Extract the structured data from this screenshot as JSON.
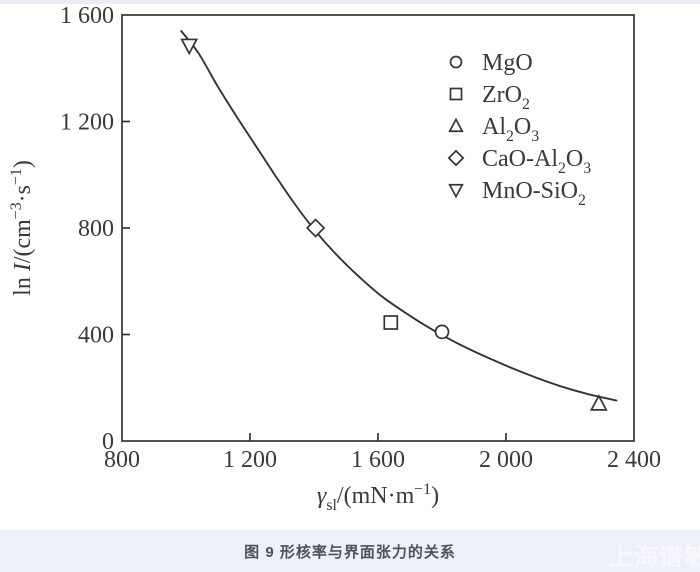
{
  "figure": {
    "caption": "图 9 形核率与界面张力的关系",
    "watermark": "上海谱敏"
  },
  "chart_data": {
    "type": "scatter",
    "title": "",
    "grid": false,
    "legend_position": "top-right",
    "xlim": [
      800,
      2400
    ],
    "ylim": [
      0,
      1600
    ],
    "x_ticks": [
      {
        "v": 800,
        "label": "800"
      },
      {
        "v": 1200,
        "label": "1 200"
      },
      {
        "v": 1600,
        "label": "1 600"
      },
      {
        "v": 2000,
        "label": "2 000"
      },
      {
        "v": 2400,
        "label": "2 400"
      }
    ],
    "y_ticks": [
      {
        "v": 0,
        "label": "0"
      },
      {
        "v": 400,
        "label": "400"
      },
      {
        "v": 800,
        "label": "800"
      },
      {
        "v": 1200,
        "label": "1 200"
      },
      {
        "v": 1600,
        "label": "1 600"
      }
    ],
    "xlabel_parts": [
      {
        "t": "γ",
        "i": true
      },
      {
        "t": "sl",
        "sub": true
      },
      {
        "t": "/(mN·m"
      },
      {
        "t": "−1",
        "sup": true
      },
      {
        "t": ")"
      }
    ],
    "ylabel_parts": [
      {
        "t": "ln "
      },
      {
        "t": "I",
        "i": true
      },
      {
        "t": "/(cm"
      },
      {
        "t": "−3",
        "sup": true
      },
      {
        "t": "·s"
      },
      {
        "t": "−1",
        "sup": true
      },
      {
        "t": ")"
      }
    ],
    "series": [
      {
        "name": "MgO",
        "marker": "circle",
        "label_parts": [
          {
            "t": "MgO"
          }
        ],
        "points": [
          [
            1800,
            410
          ]
        ]
      },
      {
        "name": "ZrO2",
        "marker": "square",
        "label_parts": [
          {
            "t": "ZrO"
          },
          {
            "t": "2",
            "sub": true
          }
        ],
        "points": [
          [
            1640,
            445
          ]
        ]
      },
      {
        "name": "Al2O3",
        "marker": "triangle-up",
        "label_parts": [
          {
            "t": "Al"
          },
          {
            "t": "2",
            "sub": true
          },
          {
            "t": "O"
          },
          {
            "t": "3",
            "sub": true
          }
        ],
        "points": [
          [
            2290,
            140
          ]
        ]
      },
      {
        "name": "CaO-Al2O3",
        "marker": "diamond",
        "label_parts": [
          {
            "t": "CaO-Al"
          },
          {
            "t": "2",
            "sub": true
          },
          {
            "t": "O"
          },
          {
            "t": "3",
            "sub": true
          }
        ],
        "points": [
          [
            1405,
            800
          ]
        ]
      },
      {
        "name": "MnO-SiO2",
        "marker": "triangle-down",
        "label_parts": [
          {
            "t": "MnO-SiO"
          },
          {
            "t": "2",
            "sub": true
          }
        ],
        "points": [
          [
            1010,
            1485
          ]
        ]
      }
    ],
    "fit_curve": [
      [
        985,
        1540
      ],
      [
        1040,
        1455
      ],
      [
        1100,
        1330
      ],
      [
        1160,
        1215
      ],
      [
        1220,
        1105
      ],
      [
        1280,
        995
      ],
      [
        1340,
        890
      ],
      [
        1400,
        795
      ],
      [
        1470,
        700
      ],
      [
        1540,
        618
      ],
      [
        1610,
        545
      ],
      [
        1690,
        478
      ],
      [
        1770,
        418
      ],
      [
        1850,
        366
      ],
      [
        1930,
        320
      ],
      [
        2010,
        278
      ],
      [
        2090,
        240
      ],
      [
        2170,
        206
      ],
      [
        2250,
        178
      ],
      [
        2345,
        152
      ]
    ],
    "colors": {
      "line": "#343434",
      "text": "#3a3a3a",
      "marker_fill": "#ffffff"
    }
  }
}
